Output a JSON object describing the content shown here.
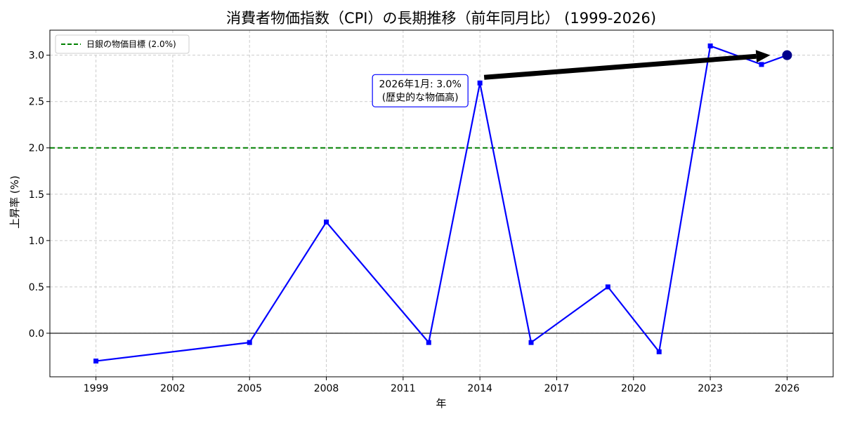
{
  "chart_data": {
    "type": "line",
    "title": "消費者物価指数（CPI）の長期推移（前年同月比） (1999-2026)",
    "xlabel": "年",
    "ylabel": "上昇率 (%)",
    "x": [
      1999,
      2005,
      2008,
      2012,
      2014,
      2016,
      2019,
      2021,
      2023,
      2025,
      2026
    ],
    "series": [
      {
        "values": [
          -0.3,
          -0.1,
          1.2,
          -0.1,
          2.7,
          -0.1,
          0.5,
          -0.2,
          3.1,
          2.9,
          3.0
        ],
        "color": "#0000ff",
        "marker": "square"
      }
    ],
    "highlight_point": {
      "x": 2026,
      "y": 3.0,
      "color": "#00008b"
    },
    "xticks": [
      1999,
      2002,
      2005,
      2008,
      2011,
      2014,
      2017,
      2020,
      2023,
      2026
    ],
    "yticks": [
      0.0,
      0.5,
      1.0,
      1.5,
      2.0,
      2.5,
      3.0
    ],
    "ytick_labels": [
      "0.0",
      "0.5",
      "1.0",
      "1.5",
      "2.0",
      "2.5",
      "3.0"
    ],
    "xlim": [
      1997.2,
      2027.8
    ],
    "ylim": [
      -0.47,
      3.27
    ],
    "grid": true,
    "reference_lines": [
      {
        "type": "horizontal",
        "y": 2.0,
        "color": "#008000",
        "style": "dashed",
        "label": "日銀の物価目標 (2.0%)"
      },
      {
        "type": "horizontal",
        "y": 0.0,
        "color": "#000000",
        "style": "solid"
      }
    ],
    "legend": {
      "placement": "top-left",
      "entries": [
        "日銀の物価目標 (2.0%)"
      ]
    },
    "annotation": {
      "lines": [
        "2026年1月: 3.0%",
        "(歴史的な物価高)"
      ],
      "target": {
        "x": 2026,
        "y": 3.0
      },
      "text_anchor": {
        "x": 2014,
        "y": 2.7
      },
      "box_color": "#0000ff"
    }
  }
}
